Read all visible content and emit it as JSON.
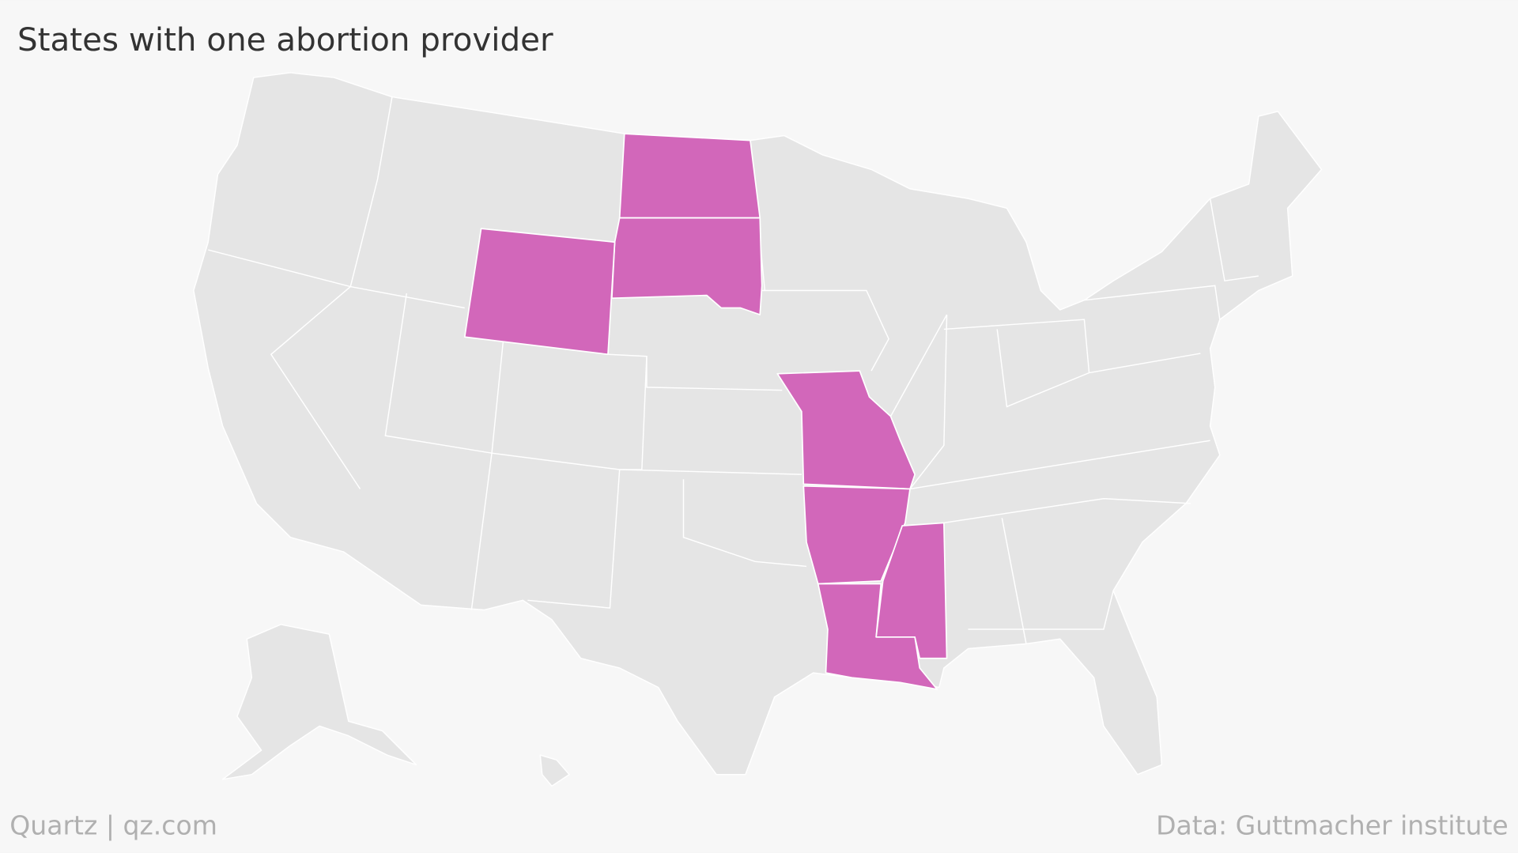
{
  "title": "States with one abortion provider",
  "credit": "Quartz | qz.com",
  "source": "Data: Guttmacher institute"
}
